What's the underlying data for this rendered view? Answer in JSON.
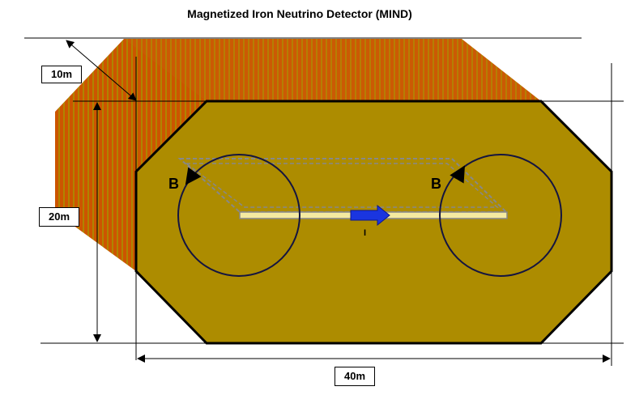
{
  "title": "Magnetized Iron Neutrino Detector (MIND)",
  "dimensions": {
    "depth": "10m",
    "height": "20m",
    "width": "40m"
  },
  "labels": {
    "field_left": "B",
    "field_right": "B",
    "current": "I"
  },
  "colors": {
    "iron_face": "#ad8c00",
    "plate_orange": "#cc5500",
    "plate_gold": "#b08400",
    "coil": "#f5eaa0",
    "current_arrow": "#1a35e0",
    "outline": "#000000",
    "dashed_loop": "#888888"
  }
}
